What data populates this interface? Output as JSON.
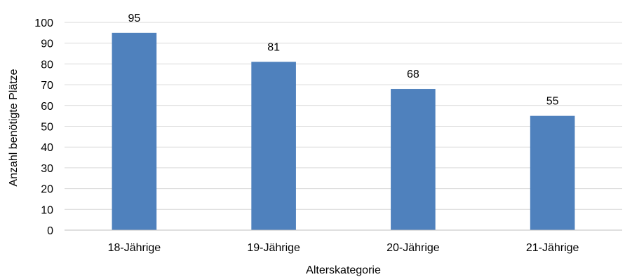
{
  "chart_data": {
    "type": "bar",
    "title": "",
    "xlabel": "Alterskategorie",
    "ylabel": "Anzahl benötigte Plätze",
    "categories": [
      "18-Jährige",
      "19-Jährige",
      "20-Jährige",
      "21-Jährige"
    ],
    "values": [
      95,
      81,
      68,
      55
    ],
    "data_labels": [
      "95",
      "81",
      "68",
      "55"
    ],
    "ylim": [
      0,
      100
    ],
    "yticks": [
      0,
      10,
      20,
      30,
      40,
      50,
      60,
      70,
      80,
      90,
      100
    ],
    "ytick_labels": [
      "0",
      "10",
      "20",
      "30",
      "40",
      "50",
      "60",
      "70",
      "80",
      "90",
      "100"
    ],
    "grid": true,
    "legend": "none",
    "bar_color": "#4f81bd",
    "grid_color": "#d9d9d9"
  }
}
